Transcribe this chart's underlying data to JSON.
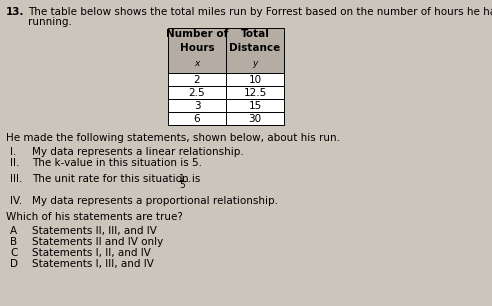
{
  "question_number": "13.",
  "intro_line1": "The table below shows the total miles run by Forrest based on the number of hours he has been",
  "intro_line2": "running.",
  "table_col1_header1": "Number of",
  "table_col1_header2": "Hours",
  "table_col1_header3": "x",
  "table_col2_header1": "Total",
  "table_col2_header2": "Distance",
  "table_col2_header3": "y",
  "table_data": [
    [
      "2",
      "10"
    ],
    [
      "2.5",
      "12.5"
    ],
    [
      "3",
      "15"
    ],
    [
      "6",
      "30"
    ]
  ],
  "middle_text": "He made the following statements, shown below, about his run.",
  "stmt_I_roman": "I.",
  "stmt_I_text": "My data represents a linear relationship.",
  "stmt_II_roman": "II.",
  "stmt_II_text": "The k-value in this situation is 5.",
  "stmt_III_roman": "III.",
  "stmt_III_prefix": "The unit rate for this situation is ",
  "stmt_III_suffix": ".",
  "stmt_IV_roman": "IV.",
  "stmt_IV_text": "My data represents a proportional relationship.",
  "question_text": "Which of his statements are true?",
  "answer_choices": [
    [
      "A",
      "Statements II, III, and IV"
    ],
    [
      "B",
      "Statements II and IV only"
    ],
    [
      "C",
      "Statements I, II, and IV"
    ],
    [
      "D",
      "Statements I, III, and IV"
    ]
  ],
  "bg_color": "#ccc5bb",
  "table_header_bg": "#b5ada4",
  "table_data_bg": "#ffffff",
  "font_size": 7.5,
  "small_font_size": 7.0
}
